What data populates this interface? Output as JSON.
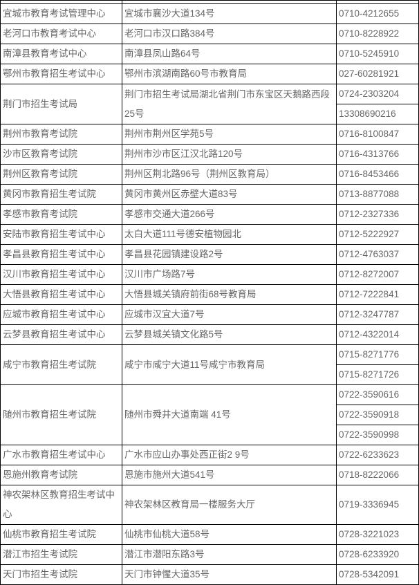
{
  "colors": {
    "border": "#000000",
    "text": "#666666",
    "background": "#ffffff"
  },
  "table": {
    "rows": [
      {
        "name": "宜城市教育考试管理中心",
        "address": "宜城市襄沙大道134号",
        "phones": [
          "0710-4212655"
        ]
      },
      {
        "name": "老河口市教育考试中心",
        "address": "老河口市汉口路384号",
        "phones": [
          "0710-8228922"
        ]
      },
      {
        "name": "南漳县教育考试中心",
        "address": "南漳县凤山路64号",
        "phones": [
          "0710-5245910"
        ]
      },
      {
        "name": "鄂州市教育招生考试中心",
        "address": "鄂州市滨湖南路60号市教育局",
        "phones": [
          "027-60281921"
        ]
      },
      {
        "name": "荆门市招生考试局",
        "address": "荆门市招生考试局湖北省荆门市东宝区天鹅路西段25号",
        "phones": [
          "0724-2303204",
          "13308690216"
        ]
      },
      {
        "name": "荆州市教育考试院",
        "address": "荆州市荆州区学苑5号",
        "phones": [
          "0716-8100847"
        ]
      },
      {
        "name": "沙市区教育考试院",
        "address": "荆州市沙市区江汉北路120号",
        "phones": [
          "0716-4313766"
        ]
      },
      {
        "name": "荆州区教育考试院",
        "address": "荆州区荆北路96号（荆州区教育局）",
        "phones": [
          "0716-8453466"
        ]
      },
      {
        "name": "黄冈市教育招生考试院",
        "address": "黄冈市黄州区赤壁大道83号",
        "phones": [
          "0713-8877088"
        ]
      },
      {
        "name": "孝感市教育考试院",
        "address": "孝感市交通大道266号",
        "phones": [
          "0712-2327336"
        ]
      },
      {
        "name": "安陆市教育招生考试中心",
        "address": "太白大道111号德安植物园北",
        "phones": [
          "0712-5222927"
        ]
      },
      {
        "name": "孝昌县教育招生考试中心",
        "address": "孝昌县花园镇建设路2号",
        "phones": [
          "0712-4763037"
        ]
      },
      {
        "name": "汉川市教育招生考试中心",
        "address": "汉川市广场路7号",
        "phones": [
          "0712-8272007"
        ]
      },
      {
        "name": "大悟县教育招生考试中心",
        "address": "大悟县城关镇府前街68号教育局",
        "phones": [
          "0712-7222841"
        ]
      },
      {
        "name": "应城市教育招生考试中心",
        "address": "应城市汉宜大道7号",
        "phones": [
          "0712-3247787"
        ]
      },
      {
        "name": "云梦县教育招生考试中心",
        "address": "云梦县城关镇文化路5号",
        "phones": [
          "0712-4322014"
        ]
      },
      {
        "name": "咸宁市教育招生考试院",
        "address": "咸宁市咸宁大道11号咸宁市教育局",
        "phones": [
          "0715-8271776",
          "0715-8271726"
        ]
      },
      {
        "name": "随州市教育招生考试院",
        "address": "随州市舜井大道南端 41号",
        "phones": [
          "0722-3590616",
          "0722-3590918",
          "0722-3590998"
        ]
      },
      {
        "name": "广水市教育招生考试中心",
        "address": "广水市应山办事处西正街2 9号",
        "phones": [
          "0722-6233623"
        ]
      },
      {
        "name": "恩施州教育考试院",
        "address": "恩施市施州大道541号",
        "phones": [
          "0718-8222066"
        ]
      },
      {
        "name": "神农架林区教育招生考试中心",
        "address": "神农架林区教育局一楼服务大厅",
        "phones": [
          "0719-3336945"
        ]
      },
      {
        "name": "仙桃市教育招生考试院",
        "address": "仙桃市仙桃大道58号",
        "phones": [
          "0728-3221023"
        ]
      },
      {
        "name": "潜江市招生考试院",
        "address": "潜江市潜阳东路3号",
        "phones": [
          "0728-6233920"
        ]
      },
      {
        "name": "天门市招生考试院",
        "address": "天门市钟惺大道35号",
        "phones": [
          "0728-5342091"
        ]
      }
    ]
  }
}
